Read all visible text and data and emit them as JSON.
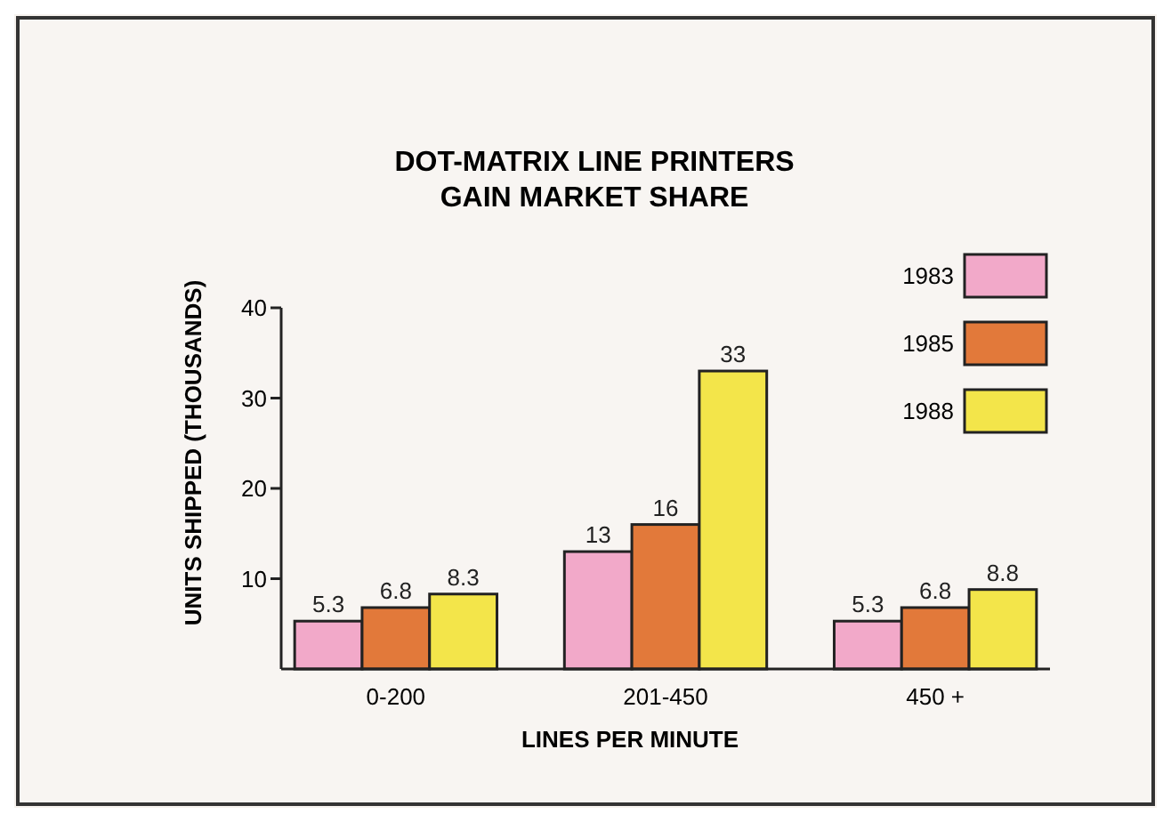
{
  "chart_data": {
    "type": "bar",
    "title": "DOT-MATRIX LINE PRINTERS\nGAIN MARKET SHARE",
    "xlabel": "LINES PER MINUTE",
    "ylabel": "UNITS SHIPPED (THOUSANDS)",
    "categories": [
      "0-200",
      "201-450",
      "450 +"
    ],
    "series": [
      {
        "name": "1983",
        "color": "#f2a9c9",
        "values": [
          5.3,
          13,
          5.3
        ]
      },
      {
        "name": "1985",
        "color": "#e2793a",
        "values": [
          6.8,
          16,
          6.8
        ]
      },
      {
        "name": "1988",
        "color": "#f3e54a",
        "values": [
          8.3,
          33,
          8.8
        ]
      }
    ],
    "ylim": [
      0,
      40
    ],
    "yticks": [
      10,
      20,
      30,
      40
    ],
    "data_labels": true,
    "legend": "top right",
    "grid": false
  }
}
